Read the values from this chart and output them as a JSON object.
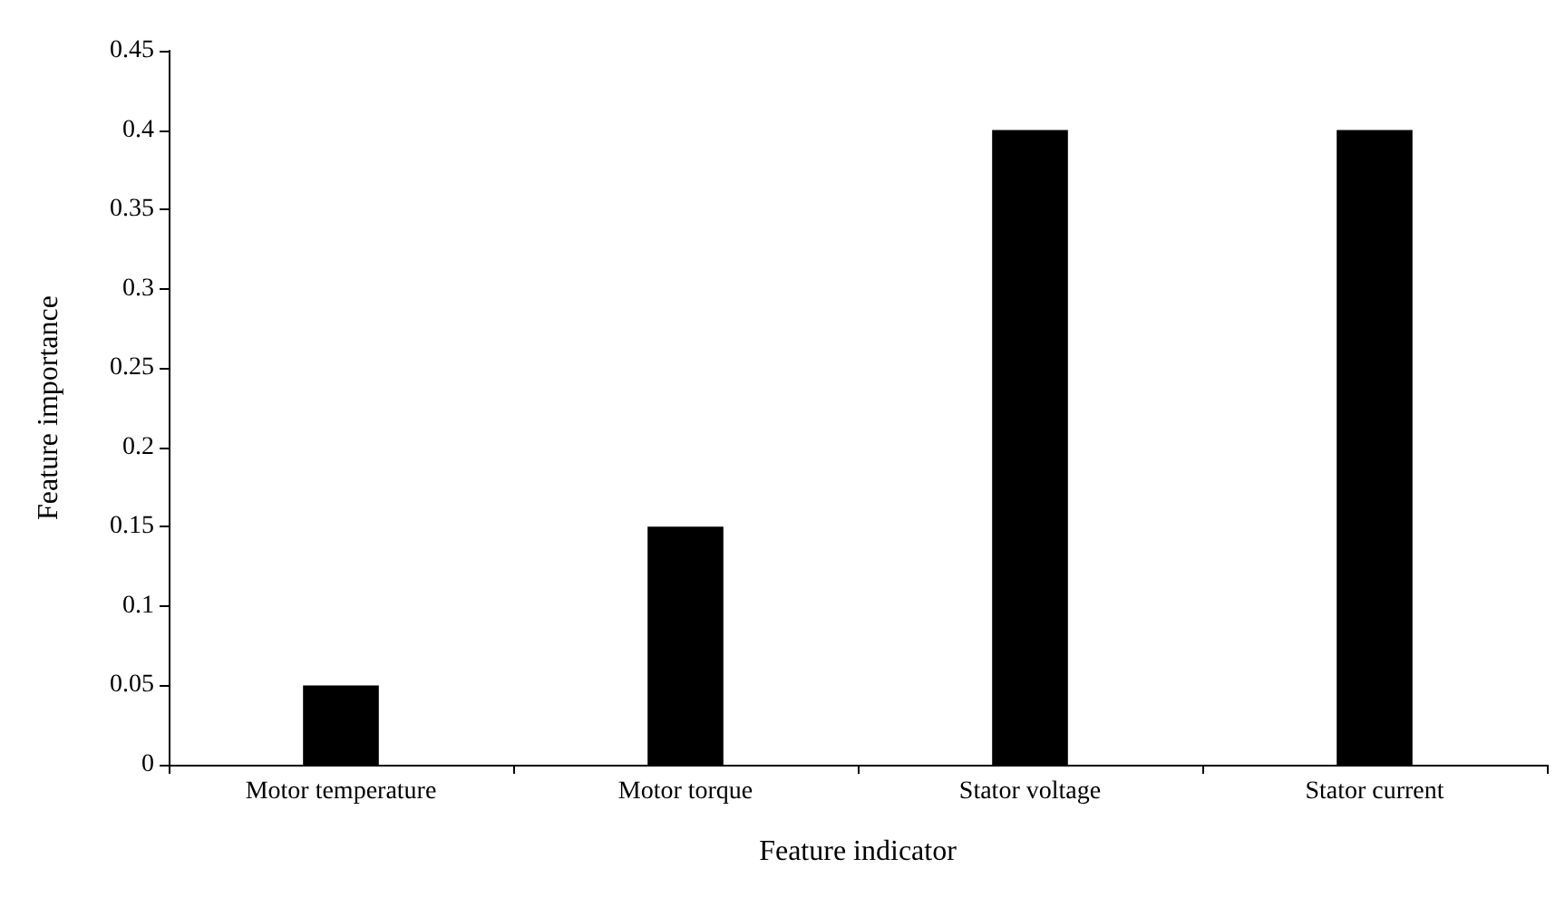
{
  "chart_data": {
    "type": "bar",
    "xlabel": "Feature indicator",
    "ylabel": "Feature importance",
    "categories": [
      "Motor temperature",
      "Motor torque",
      "Stator voltage",
      "Stator current"
    ],
    "values": [
      0.05,
      0.15,
      0.4,
      0.4
    ],
    "color": "#000000",
    "ylim": [
      0,
      0.45
    ],
    "yticks": [
      0,
      0.05,
      0.1,
      0.15,
      0.2,
      0.25,
      0.3,
      0.35,
      0.4,
      0.45
    ],
    "grid": false
  }
}
